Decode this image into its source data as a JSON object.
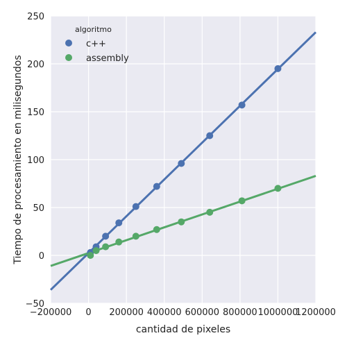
{
  "chart_data": {
    "type": "scatter",
    "title": "",
    "xlabel": "cantidad de pixeles",
    "ylabel": "Tiempo de procesamiento en milisegundos",
    "xlim": [
      -200000,
      1200000
    ],
    "ylim": [
      -50,
      250
    ],
    "xticks": [
      -200000,
      0,
      200000,
      400000,
      600000,
      800000,
      1000000,
      1200000
    ],
    "xtick_labels": [
      "−200000",
      "0",
      "200000",
      "400000",
      "600000",
      "800000",
      "1000000",
      "1200000"
    ],
    "yticks": [
      -50,
      0,
      50,
      100,
      150,
      200,
      250
    ],
    "ytick_labels": [
      "−50",
      "0",
      "50",
      "100",
      "150",
      "200",
      "250"
    ],
    "grid": true,
    "legend_title": "algoritmo",
    "legend_position": "top-left",
    "series": [
      {
        "name": "c++",
        "color": "#4c72b0",
        "x": [
          10000,
          40000,
          90000,
          160000,
          250000,
          360000,
          490000,
          640000,
          810000,
          1000000
        ],
        "y": [
          3,
          9,
          20,
          34,
          51,
          72,
          96,
          125,
          157,
          195
        ],
        "fit_line": {
          "x": [
            -200000,
            1200000
          ],
          "y": [
            -36,
            233
          ]
        }
      },
      {
        "name": "assembly",
        "color": "#55a868",
        "x": [
          10000,
          40000,
          90000,
          160000,
          250000,
          360000,
          490000,
          640000,
          810000,
          1000000
        ],
        "y": [
          0,
          5,
          9,
          14,
          20,
          27,
          35,
          45,
          57,
          70
        ],
        "fit_line": {
          "x": [
            -200000,
            1200000
          ],
          "y": [
            -11,
            83
          ]
        }
      }
    ]
  }
}
